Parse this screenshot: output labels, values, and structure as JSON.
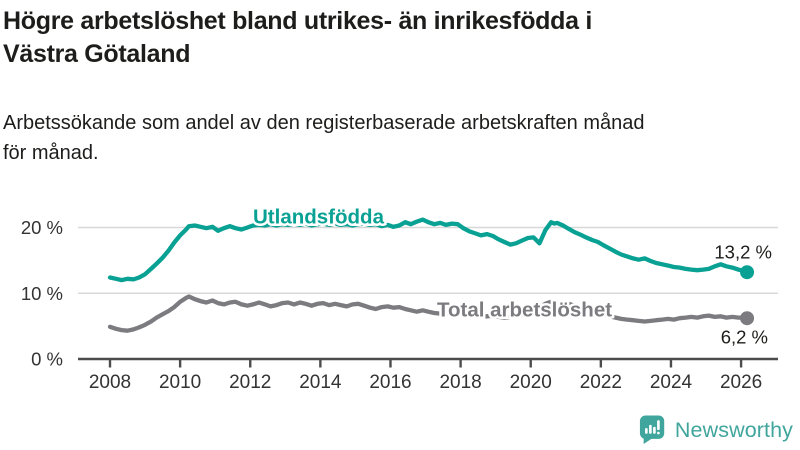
{
  "header": {
    "title": "Högre arbetslöshet bland utrikes- än inrikesfödda i\nVästra Götaland",
    "subtitle": "Arbetssökande som andel av den registerbaserade arbetskraften månad\nför månad."
  },
  "chart_data": {
    "type": "line",
    "title": "Högre arbetslöshet bland utrikes- än inrikesfödda i Västra Götaland",
    "subtitle": "Arbetssökande som andel av den registerbaserade arbetskraften månad för månad.",
    "unit": "%",
    "xlim": [
      2007.5,
      2027
    ],
    "ylim": [
      0,
      22
    ],
    "grid": "horizontal",
    "xticks": [
      2008,
      2010,
      2012,
      2014,
      2016,
      2018,
      2020,
      2022,
      2024,
      2026
    ],
    "yticks": [
      {
        "value": 0,
        "label": "0 %"
      },
      {
        "value": 10,
        "label": "10 %"
      },
      {
        "value": 20,
        "label": "20 %"
      }
    ],
    "colors": {
      "grid": "#d8d8d8",
      "axis": "#4c4c4c",
      "tick_text": "#333333",
      "end_label_text": "#1d1d1b"
    },
    "series": [
      {
        "name": "Utlandsfödda",
        "color": "#09a193",
        "end_label": "13,2 %",
        "last_value": 13.2,
        "points": [
          [
            2008.0,
            12.4
          ],
          [
            2008.17,
            12.2
          ],
          [
            2008.33,
            12.0
          ],
          [
            2008.5,
            12.2
          ],
          [
            2008.67,
            12.1
          ],
          [
            2008.83,
            12.4
          ],
          [
            2009.0,
            12.9
          ],
          [
            2009.17,
            13.7
          ],
          [
            2009.33,
            14.5
          ],
          [
            2009.5,
            15.4
          ],
          [
            2009.67,
            16.5
          ],
          [
            2009.83,
            17.7
          ],
          [
            2010.0,
            18.8
          ],
          [
            2010.17,
            19.7
          ],
          [
            2010.25,
            20.2
          ],
          [
            2010.42,
            20.3
          ],
          [
            2010.58,
            20.1
          ],
          [
            2010.75,
            19.9
          ],
          [
            2010.92,
            20.1
          ],
          [
            2011.08,
            19.5
          ],
          [
            2011.25,
            19.9
          ],
          [
            2011.42,
            20.2
          ],
          [
            2011.58,
            19.9
          ],
          [
            2011.75,
            19.7
          ],
          [
            2011.92,
            20.0
          ],
          [
            2012.08,
            20.3
          ],
          [
            2012.25,
            20.4
          ],
          [
            2012.42,
            20.3
          ],
          [
            2012.58,
            20.5
          ],
          [
            2012.75,
            20.3
          ],
          [
            2012.92,
            20.5
          ],
          [
            2013.08,
            20.4
          ],
          [
            2013.25,
            20.6
          ],
          [
            2013.42,
            20.4
          ],
          [
            2013.58,
            20.6
          ],
          [
            2013.75,
            20.3
          ],
          [
            2013.92,
            20.5
          ],
          [
            2014.08,
            20.6
          ],
          [
            2014.25,
            20.4
          ],
          [
            2014.42,
            20.6
          ],
          [
            2014.58,
            20.4
          ],
          [
            2014.75,
            20.5
          ],
          [
            2014.92,
            20.3
          ],
          [
            2015.08,
            20.5
          ],
          [
            2015.25,
            20.6
          ],
          [
            2015.42,
            20.4
          ],
          [
            2015.58,
            20.5
          ],
          [
            2015.75,
            20.2
          ],
          [
            2015.92,
            20.4
          ],
          [
            2016.08,
            20.1
          ],
          [
            2016.25,
            20.3
          ],
          [
            2016.42,
            20.8
          ],
          [
            2016.58,
            20.5
          ],
          [
            2016.75,
            20.9
          ],
          [
            2016.92,
            21.2
          ],
          [
            2017.08,
            20.8
          ],
          [
            2017.25,
            20.5
          ],
          [
            2017.42,
            20.7
          ],
          [
            2017.58,
            20.4
          ],
          [
            2017.75,
            20.6
          ],
          [
            2017.92,
            20.5
          ],
          [
            2018.08,
            19.9
          ],
          [
            2018.25,
            19.4
          ],
          [
            2018.42,
            19.1
          ],
          [
            2018.58,
            18.8
          ],
          [
            2018.75,
            19.0
          ],
          [
            2018.92,
            18.7
          ],
          [
            2019.08,
            18.2
          ],
          [
            2019.25,
            17.8
          ],
          [
            2019.42,
            17.4
          ],
          [
            2019.58,
            17.6
          ],
          [
            2019.75,
            18.0
          ],
          [
            2019.92,
            18.4
          ],
          [
            2020.08,
            18.5
          ],
          [
            2020.25,
            17.6
          ],
          [
            2020.42,
            19.6
          ],
          [
            2020.58,
            20.8
          ],
          [
            2020.67,
            20.6
          ],
          [
            2020.75,
            20.7
          ],
          [
            2020.92,
            20.3
          ],
          [
            2021.08,
            19.8
          ],
          [
            2021.25,
            19.3
          ],
          [
            2021.42,
            18.9
          ],
          [
            2021.58,
            18.5
          ],
          [
            2021.75,
            18.1
          ],
          [
            2021.92,
            17.8
          ],
          [
            2022.08,
            17.3
          ],
          [
            2022.25,
            16.8
          ],
          [
            2022.42,
            16.3
          ],
          [
            2022.58,
            15.9
          ],
          [
            2022.75,
            15.6
          ],
          [
            2022.92,
            15.3
          ],
          [
            2023.08,
            15.1
          ],
          [
            2023.25,
            15.3
          ],
          [
            2023.42,
            14.9
          ],
          [
            2023.58,
            14.6
          ],
          [
            2023.75,
            14.4
          ],
          [
            2023.92,
            14.2
          ],
          [
            2024.08,
            14.0
          ],
          [
            2024.25,
            13.9
          ],
          [
            2024.42,
            13.7
          ],
          [
            2024.58,
            13.6
          ],
          [
            2024.75,
            13.5
          ],
          [
            2024.92,
            13.6
          ],
          [
            2025.08,
            13.7
          ],
          [
            2025.25,
            14.1
          ],
          [
            2025.42,
            14.4
          ],
          [
            2025.58,
            14.1
          ],
          [
            2025.75,
            13.9
          ],
          [
            2025.92,
            13.6
          ],
          [
            2026.0,
            13.5
          ],
          [
            2026.08,
            13.4
          ],
          [
            2026.17,
            13.2
          ]
        ]
      },
      {
        "name": "Total arbetslöshet",
        "color": "#7b7b80",
        "end_label": "6,2 %",
        "last_value": 6.2,
        "points": [
          [
            2008.0,
            4.9
          ],
          [
            2008.17,
            4.6
          ],
          [
            2008.33,
            4.4
          ],
          [
            2008.5,
            4.3
          ],
          [
            2008.67,
            4.5
          ],
          [
            2008.83,
            4.8
          ],
          [
            2009.0,
            5.2
          ],
          [
            2009.17,
            5.7
          ],
          [
            2009.33,
            6.3
          ],
          [
            2009.5,
            6.8
          ],
          [
            2009.67,
            7.3
          ],
          [
            2009.83,
            7.9
          ],
          [
            2010.0,
            8.7
          ],
          [
            2010.17,
            9.3
          ],
          [
            2010.25,
            9.5
          ],
          [
            2010.42,
            9.1
          ],
          [
            2010.58,
            8.8
          ],
          [
            2010.75,
            8.6
          ],
          [
            2010.92,
            8.9
          ],
          [
            2011.08,
            8.5
          ],
          [
            2011.25,
            8.3
          ],
          [
            2011.42,
            8.6
          ],
          [
            2011.58,
            8.7
          ],
          [
            2011.75,
            8.3
          ],
          [
            2011.92,
            8.1
          ],
          [
            2012.08,
            8.3
          ],
          [
            2012.25,
            8.6
          ],
          [
            2012.42,
            8.3
          ],
          [
            2012.58,
            8.0
          ],
          [
            2012.75,
            8.2
          ],
          [
            2012.92,
            8.5
          ],
          [
            2013.08,
            8.6
          ],
          [
            2013.25,
            8.3
          ],
          [
            2013.42,
            8.6
          ],
          [
            2013.58,
            8.4
          ],
          [
            2013.75,
            8.1
          ],
          [
            2013.92,
            8.4
          ],
          [
            2014.08,
            8.5
          ],
          [
            2014.25,
            8.2
          ],
          [
            2014.42,
            8.4
          ],
          [
            2014.58,
            8.2
          ],
          [
            2014.75,
            8.0
          ],
          [
            2014.92,
            8.3
          ],
          [
            2015.08,
            8.4
          ],
          [
            2015.25,
            8.1
          ],
          [
            2015.42,
            7.8
          ],
          [
            2015.58,
            7.6
          ],
          [
            2015.75,
            7.9
          ],
          [
            2015.92,
            8.0
          ],
          [
            2016.08,
            7.8
          ],
          [
            2016.25,
            7.9
          ],
          [
            2016.42,
            7.6
          ],
          [
            2016.58,
            7.4
          ],
          [
            2016.75,
            7.2
          ],
          [
            2016.92,
            7.4
          ],
          [
            2017.08,
            7.2
          ],
          [
            2017.25,
            7.0
          ],
          [
            2017.42,
            6.9
          ],
          [
            2017.58,
            7.0
          ],
          [
            2017.75,
            6.8
          ],
          [
            2017.92,
            6.9
          ],
          [
            2018.08,
            6.7
          ],
          [
            2018.25,
            6.5
          ],
          [
            2018.42,
            6.6
          ],
          [
            2018.58,
            6.4
          ],
          [
            2018.75,
            6.5
          ],
          [
            2018.92,
            6.6
          ],
          [
            2019.08,
            6.4
          ],
          [
            2019.25,
            6.3
          ],
          [
            2019.42,
            6.4
          ],
          [
            2019.58,
            6.5
          ],
          [
            2019.75,
            6.7
          ],
          [
            2019.92,
            6.9
          ],
          [
            2020.08,
            7.1
          ],
          [
            2020.25,
            7.8
          ],
          [
            2020.42,
            8.4
          ],
          [
            2020.58,
            8.7
          ],
          [
            2020.75,
            8.5
          ],
          [
            2020.92,
            8.3
          ],
          [
            2021.08,
            8.4
          ],
          [
            2021.25,
            8.1
          ],
          [
            2021.42,
            7.8
          ],
          [
            2021.58,
            7.5
          ],
          [
            2021.75,
            7.2
          ],
          [
            2021.92,
            7.0
          ],
          [
            2022.08,
            6.8
          ],
          [
            2022.25,
            6.5
          ],
          [
            2022.42,
            6.3
          ],
          [
            2022.58,
            6.1
          ],
          [
            2022.75,
            6.0
          ],
          [
            2022.92,
            5.9
          ],
          [
            2023.08,
            5.8
          ],
          [
            2023.25,
            5.7
          ],
          [
            2023.42,
            5.8
          ],
          [
            2023.58,
            5.9
          ],
          [
            2023.75,
            6.0
          ],
          [
            2023.92,
            6.1
          ],
          [
            2024.08,
            6.0
          ],
          [
            2024.25,
            6.2
          ],
          [
            2024.42,
            6.3
          ],
          [
            2024.58,
            6.4
          ],
          [
            2024.75,
            6.3
          ],
          [
            2024.92,
            6.5
          ],
          [
            2025.08,
            6.6
          ],
          [
            2025.25,
            6.4
          ],
          [
            2025.42,
            6.5
          ],
          [
            2025.58,
            6.3
          ],
          [
            2025.75,
            6.4
          ],
          [
            2025.92,
            6.3
          ],
          [
            2026.08,
            6.3
          ],
          [
            2026.17,
            6.2
          ]
        ]
      }
    ],
    "legend_position": "inline-labels"
  },
  "footer": {
    "brand": "Newsworthy",
    "brand_color": "#40a59c"
  }
}
